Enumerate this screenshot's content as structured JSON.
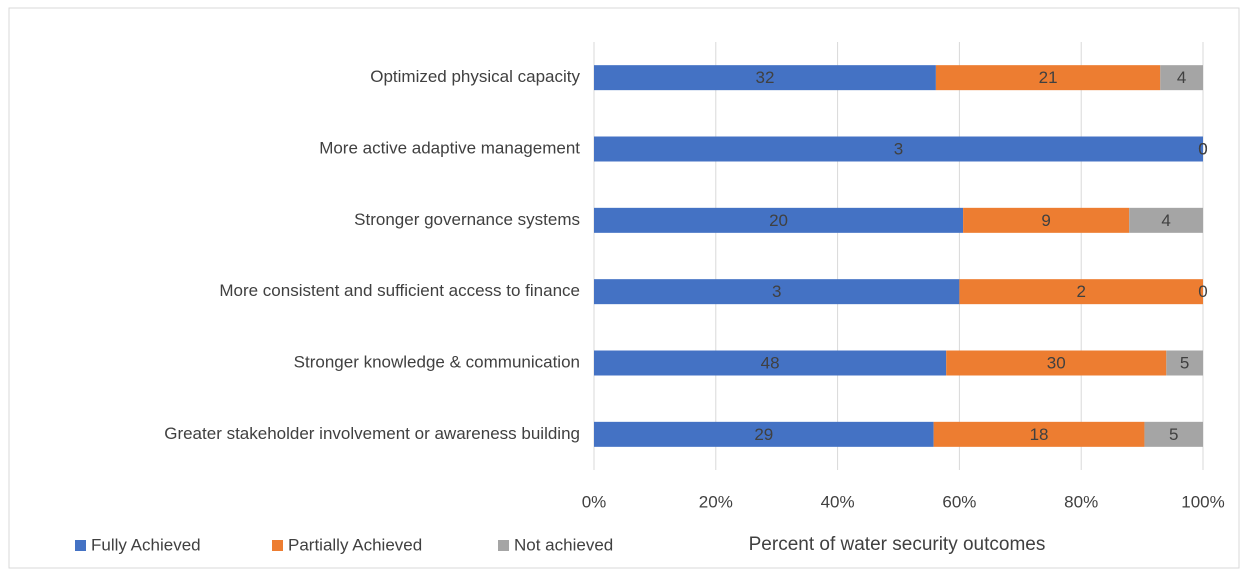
{
  "chart_data": {
    "type": "bar",
    "orientation": "horizontal",
    "stacking": "percent",
    "categories": [
      "Optimized physical capacity",
      "More active adaptive management",
      "Stronger governance systems",
      "More consistent and sufficient access to finance",
      "Stronger knowledge & communication",
      "Greater stakeholder involvement or awareness building"
    ],
    "series": [
      {
        "name": "Fully Achieved",
        "color": "#4472c4",
        "values": [
          32,
          3,
          20,
          3,
          48,
          29
        ]
      },
      {
        "name": "Partially Achieved",
        "color": "#ed7d31",
        "values": [
          21,
          0,
          9,
          2,
          30,
          18
        ]
      },
      {
        "name": "Not achieved",
        "color": "#a5a5a5",
        "values": [
          4,
          0,
          4,
          0,
          5,
          5
        ]
      }
    ],
    "xlabel": "Percent of water security outcomes",
    "xlim": [
      0,
      100
    ],
    "xticks": [
      {
        "value": 0,
        "label": "0%"
      },
      {
        "value": 20,
        "label": "20%"
      },
      {
        "value": 40,
        "label": "40%"
      },
      {
        "value": 60,
        "label": "60%"
      },
      {
        "value": 80,
        "label": "80%"
      },
      {
        "value": 100,
        "label": "100%"
      }
    ],
    "grid": true,
    "legend": "bottom-left"
  }
}
